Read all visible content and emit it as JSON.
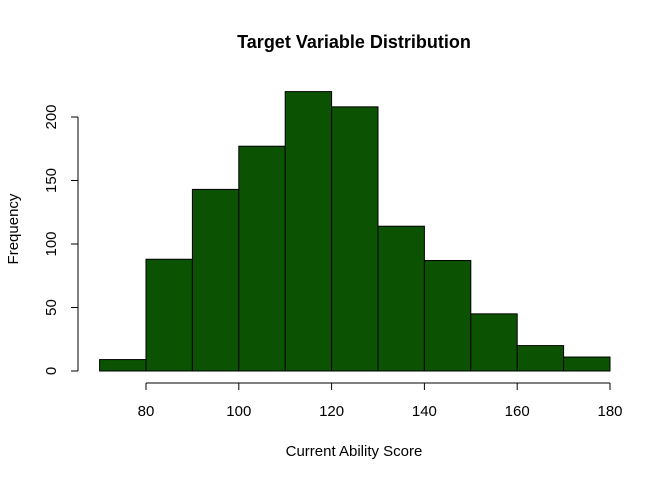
{
  "chart_data": {
    "type": "bar",
    "subtype": "histogram",
    "title": "Target Variable Distribution",
    "xlabel": "Current Ability Score",
    "ylabel": "Frequency",
    "bins": [
      {
        "start": 70,
        "end": 80,
        "count": 9
      },
      {
        "start": 80,
        "end": 90,
        "count": 88
      },
      {
        "start": 90,
        "end": 100,
        "count": 143
      },
      {
        "start": 100,
        "end": 110,
        "count": 177
      },
      {
        "start": 110,
        "end": 120,
        "count": 220
      },
      {
        "start": 120,
        "end": 130,
        "count": 208
      },
      {
        "start": 130,
        "end": 140,
        "count": 114
      },
      {
        "start": 140,
        "end": 150,
        "count": 87
      },
      {
        "start": 150,
        "end": 160,
        "count": 45
      },
      {
        "start": 160,
        "end": 170,
        "count": 20
      },
      {
        "start": 170,
        "end": 180,
        "count": 11
      }
    ],
    "xticks": [
      80,
      100,
      120,
      140,
      160,
      180
    ],
    "yticks": [
      0,
      50,
      100,
      150,
      200
    ],
    "bar_color": "#0b5302",
    "grid": false,
    "legend": "none"
  }
}
